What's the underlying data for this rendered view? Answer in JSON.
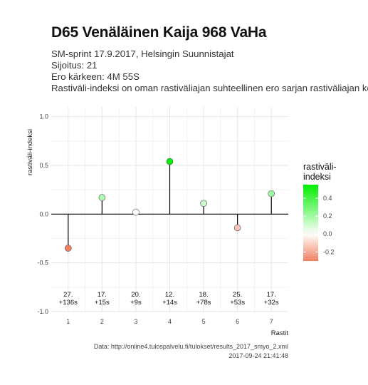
{
  "title": "D65 Venäläinen Kaija 968 VaHa",
  "subtitle_lines": [
    "SM-sprint 17.9.2017, Helsingin Suunnistajat",
    "Sijoitus: 21",
    "Ero kärkeen: 4M 55S",
    "Rastiväli-indeksi on oman rastiväliajan suhteellinen ero sarjan rastiväliajan kes"
  ],
  "footer": {
    "source": "Data: http://online4.tulospalvelu.fi/tulokset/results_2017_smyo_2.xml",
    "timestamp": "2017-09-24 21:41:48"
  },
  "chart_data": {
    "type": "scatter",
    "style": "lollipop",
    "xlabel": "Rastit",
    "ylabel": "rastiväli-indeksi",
    "xlim": [
      0.5,
      7.5
    ],
    "ylim": [
      -1.0,
      1.1
    ],
    "x_ticks": [
      1,
      2,
      3,
      4,
      5,
      6,
      7
    ],
    "y_ticks": [
      -1.0,
      -0.5,
      0.0,
      0.5,
      1.0
    ],
    "y_tick_labels": [
      "-1.0",
      "-0.5",
      "0.0",
      "0.5",
      "1.0"
    ],
    "points": [
      {
        "x": 1,
        "y": -0.35,
        "rank": "27.",
        "diff": "+136s"
      },
      {
        "x": 2,
        "y": 0.17,
        "rank": "17.",
        "diff": "+15s"
      },
      {
        "x": 3,
        "y": 0.02,
        "rank": "20.",
        "diff": "+9s"
      },
      {
        "x": 4,
        "y": 0.54,
        "rank": "12.",
        "diff": "+14s"
      },
      {
        "x": 5,
        "y": 0.11,
        "rank": "18.",
        "diff": "+78s"
      },
      {
        "x": 6,
        "y": -0.14,
        "rank": "25.",
        "diff": "+53s"
      },
      {
        "x": 7,
        "y": 0.21,
        "rank": "17.",
        "diff": "+32s"
      }
    ],
    "legend": {
      "title_lines": [
        "rastiväli-",
        "indeksi"
      ],
      "ticks": [
        0.4,
        0.2,
        0.0,
        -0.2
      ],
      "tick_labels": [
        "0.4",
        "0.2",
        "0.0",
        "-0.2"
      ],
      "range": [
        -0.3,
        0.55
      ],
      "placement": "right"
    },
    "colors": {
      "high": "#00ee00",
      "mid": "#ffffff",
      "low": "#f08060",
      "grid": "#e6e6e6",
      "line": "#000000"
    },
    "grid": true
  }
}
